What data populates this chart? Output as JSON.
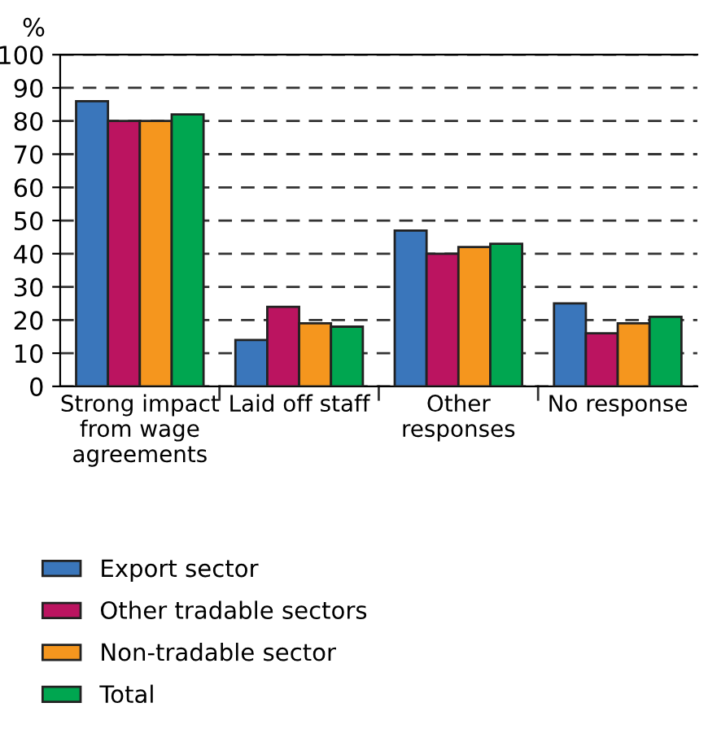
{
  "chart_data": {
    "type": "bar",
    "ylabel": "%",
    "categories": [
      "Strong impact\nfrom wage\nagreements",
      "Laid off staff",
      "Other\nresponses",
      "No response"
    ],
    "series": [
      {
        "name": "Export sector",
        "color": "#3a76bb",
        "values": [
          86,
          14,
          47,
          25
        ]
      },
      {
        "name": "Other tradable sectors",
        "color": "#bb1460",
        "values": [
          80,
          24,
          40,
          16
        ]
      },
      {
        "name": "Non-tradable sector",
        "color": "#f5961e",
        "values": [
          80,
          19,
          42,
          19
        ]
      },
      {
        "name": "Total",
        "color": "#00a650",
        "values": [
          82,
          18,
          43,
          21
        ]
      }
    ],
    "ylim": [
      0,
      100
    ],
    "yticks": [
      0,
      10,
      20,
      30,
      40,
      50,
      60,
      70,
      80,
      90,
      100
    ],
    "grid": "y",
    "line_style": "dashed",
    "legend": "bottom"
  }
}
